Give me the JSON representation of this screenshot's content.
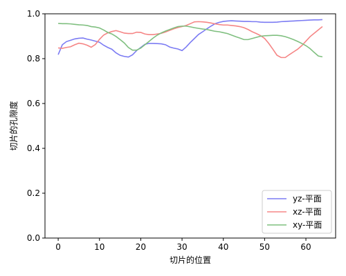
{
  "chart_data": {
    "type": "line",
    "xlabel": "切片的位置",
    "ylabel": "切片的孔隙度",
    "xlim": [
      -3.2,
      67.2
    ],
    "ylim": [
      0.0,
      1.0
    ],
    "xticks": [
      0,
      10,
      20,
      30,
      40,
      50,
      60
    ],
    "yticks": [
      0.0,
      0.2,
      0.4,
      0.6,
      0.8,
      1.0
    ],
    "ytick_labels": [
      "0.0",
      "0.2",
      "0.4",
      "0.6",
      "0.8",
      "1.0"
    ],
    "grid": false,
    "legend_position": "lower-right",
    "x": [
      0,
      1,
      2,
      3,
      4,
      5,
      6,
      7,
      8,
      9,
      10,
      11,
      12,
      13,
      14,
      15,
      16,
      17,
      18,
      19,
      20,
      21,
      22,
      23,
      24,
      25,
      26,
      27,
      28,
      29,
      30,
      31,
      32,
      33,
      34,
      35,
      36,
      37,
      38,
      39,
      40,
      41,
      42,
      43,
      44,
      45,
      46,
      47,
      48,
      49,
      50,
      51,
      52,
      53,
      54,
      55,
      56,
      57,
      58,
      59,
      60,
      61,
      62,
      63,
      64
    ],
    "series": [
      {
        "name": "yz-平面",
        "color": "#7b7bf3",
        "values": [
          0.818,
          0.862,
          0.876,
          0.882,
          0.888,
          0.891,
          0.892,
          0.887,
          0.883,
          0.878,
          0.873,
          0.86,
          0.85,
          0.842,
          0.826,
          0.815,
          0.81,
          0.807,
          0.817,
          0.836,
          0.85,
          0.864,
          0.868,
          0.868,
          0.867,
          0.866,
          0.862,
          0.852,
          0.847,
          0.843,
          0.836,
          0.852,
          0.872,
          0.89,
          0.908,
          0.92,
          0.933,
          0.945,
          0.956,
          0.962,
          0.966,
          0.968,
          0.969,
          0.968,
          0.967,
          0.966,
          0.966,
          0.965,
          0.965,
          0.963,
          0.962,
          0.962,
          0.962,
          0.963,
          0.965,
          0.966,
          0.967,
          0.968,
          0.969,
          0.97,
          0.971,
          0.972,
          0.973,
          0.973,
          0.974
        ]
      },
      {
        "name": "xz-平面",
        "color": "#f58585",
        "values": [
          0.848,
          0.846,
          0.85,
          0.853,
          0.862,
          0.869,
          0.866,
          0.86,
          0.851,
          0.863,
          0.886,
          0.905,
          0.915,
          0.921,
          0.925,
          0.92,
          0.914,
          0.912,
          0.912,
          0.918,
          0.917,
          0.91,
          0.907,
          0.907,
          0.91,
          0.913,
          0.919,
          0.926,
          0.933,
          0.939,
          0.943,
          0.948,
          0.956,
          0.964,
          0.965,
          0.964,
          0.962,
          0.959,
          0.955,
          0.952,
          0.95,
          0.95,
          0.948,
          0.946,
          0.943,
          0.938,
          0.93,
          0.92,
          0.912,
          0.903,
          0.89,
          0.868,
          0.842,
          0.815,
          0.805,
          0.805,
          0.818,
          0.83,
          0.842,
          0.858,
          0.878,
          0.898,
          0.913,
          0.928,
          0.943
        ]
      },
      {
        "name": "xy-平面",
        "color": "#7fbf7f",
        "values": [
          0.957,
          0.956,
          0.956,
          0.955,
          0.953,
          0.951,
          0.95,
          0.948,
          0.943,
          0.941,
          0.937,
          0.928,
          0.917,
          0.91,
          0.899,
          0.885,
          0.87,
          0.85,
          0.838,
          0.838,
          0.847,
          0.862,
          0.877,
          0.892,
          0.905,
          0.915,
          0.923,
          0.93,
          0.937,
          0.943,
          0.945,
          0.945,
          0.942,
          0.938,
          0.935,
          0.932,
          0.93,
          0.926,
          0.922,
          0.92,
          0.916,
          0.912,
          0.905,
          0.898,
          0.892,
          0.885,
          0.885,
          0.89,
          0.895,
          0.9,
          0.902,
          0.903,
          0.904,
          0.904,
          0.902,
          0.898,
          0.892,
          0.885,
          0.877,
          0.868,
          0.858,
          0.845,
          0.828,
          0.812,
          0.808
        ]
      }
    ]
  }
}
